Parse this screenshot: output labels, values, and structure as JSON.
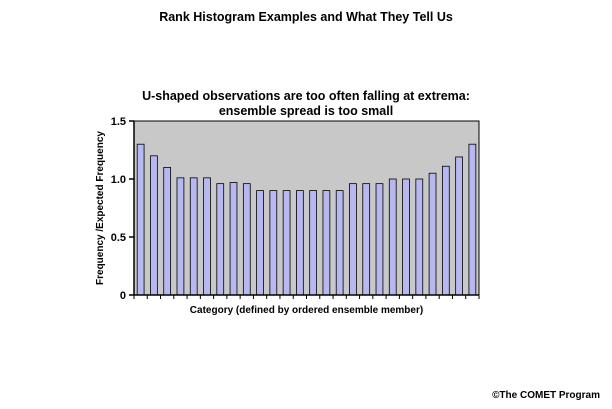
{
  "page": {
    "title": "Rank Histogram Examples and What They Tell Us",
    "credit": "©The COMET Program"
  },
  "chart_data": {
    "type": "bar",
    "title_lines": [
      "U-shaped observations are too often falling at extrema:",
      "ensemble spread is too small"
    ],
    "xlabel": "Category (defined by ordered ensemble member)",
    "ylabel": "Frequency /Expected Frequency",
    "ylim": [
      0,
      1.5
    ],
    "yticks": [
      0,
      0.5,
      1.0,
      1.5
    ],
    "ytick_labels": [
      "0",
      "0.5",
      "1.0",
      "1.5"
    ],
    "values": [
      1.3,
      1.2,
      1.1,
      1.01,
      1.01,
      1.01,
      0.96,
      0.97,
      0.96,
      0.9,
      0.9,
      0.9,
      0.9,
      0.9,
      0.9,
      0.9,
      0.96,
      0.96,
      0.96,
      1.0,
      1.0,
      1.0,
      1.05,
      1.11,
      1.19,
      1.3
    ],
    "grid": false,
    "legend": "none",
    "colors": {
      "plot_background": "#c8c8c8",
      "bar_fill": "#b8b8f0",
      "bar_stroke": "#000000"
    }
  }
}
